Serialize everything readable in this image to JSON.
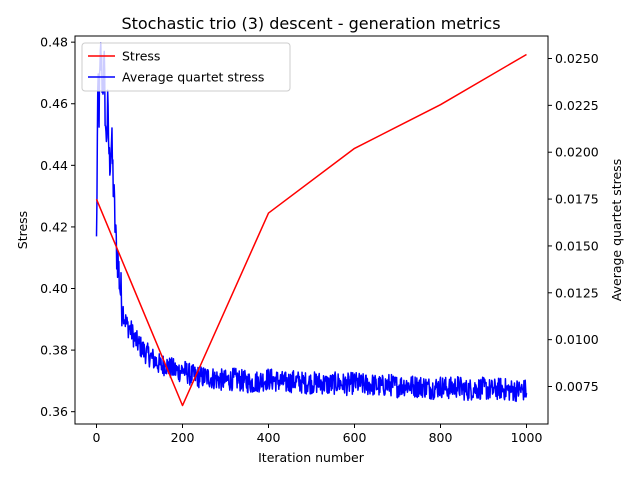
{
  "chart_data": {
    "type": "line",
    "title": "Stochastic trio (3) descent - generation metrics",
    "xlabel": "Iteration number",
    "ylabel": "Stress",
    "y2label": "Average quartet stress",
    "xlim": [
      -50,
      1050
    ],
    "ylim": [
      0.356,
      0.482
    ],
    "y2lim": [
      0.0055,
      0.0262
    ],
    "x_ticks": [
      "0",
      "200",
      "400",
      "600",
      "800",
      "1000"
    ],
    "y_ticks": [
      "0.36",
      "0.38",
      "0.40",
      "0.42",
      "0.44",
      "0.46",
      "0.48"
    ],
    "y2_ticks": [
      "0.0075",
      "0.0100",
      "0.0125",
      "0.0150",
      "0.0175",
      "0.0200",
      "0.0225",
      "0.0250"
    ],
    "grid": false,
    "legend_position": "upper-left",
    "series": [
      {
        "name": "Stress",
        "axis": "left",
        "color": "#ff0000",
        "x": [
          0,
          200,
          400,
          600,
          800,
          1000
        ],
        "values": [
          0.429,
          0.362,
          0.4245,
          0.4455,
          0.4597,
          0.476
        ]
      },
      {
        "name": "Average quartet stress",
        "axis": "right",
        "color": "#0000ff",
        "x": [
          0,
          2,
          4,
          6,
          8,
          10,
          14,
          18,
          22,
          26,
          30,
          35,
          40,
          45,
          50,
          55,
          60,
          65,
          70,
          80,
          90,
          100,
          110,
          120,
          130,
          140,
          150,
          160,
          170,
          180,
          190,
          200,
          220,
          240,
          260,
          280,
          300,
          320,
          340,
          360,
          380,
          400,
          420,
          440,
          460,
          480,
          500,
          520,
          540,
          560,
          580,
          600,
          620,
          640,
          660,
          680,
          700,
          720,
          740,
          760,
          780,
          800,
          820,
          840,
          860,
          880,
          900,
          920,
          940,
          960,
          980,
          1000
        ],
        "values": [
          0.0151,
          0.0205,
          0.0237,
          0.0222,
          0.024,
          0.0252,
          0.0236,
          0.0244,
          0.0205,
          0.0222,
          0.0194,
          0.0206,
          0.0178,
          0.0152,
          0.0142,
          0.0128,
          0.0118,
          0.0112,
          0.0108,
          0.0105,
          0.01,
          0.0097,
          0.0094,
          0.0092,
          0.009,
          0.0088,
          0.0086,
          0.0087,
          0.0085,
          0.0084,
          0.0083,
          0.0084,
          0.0081,
          0.008,
          0.008,
          0.0079,
          0.0078,
          0.0079,
          0.0078,
          0.0077,
          0.0078,
          0.0079,
          0.0078,
          0.0077,
          0.0078,
          0.0077,
          0.0077,
          0.0077,
          0.0076,
          0.0077,
          0.0076,
          0.0077,
          0.0076,
          0.0076,
          0.0075,
          0.0076,
          0.0075,
          0.0076,
          0.0075,
          0.0075,
          0.0074,
          0.0075,
          0.0074,
          0.0075,
          0.0073,
          0.0074,
          0.0074,
          0.0073,
          0.0074,
          0.0073,
          0.0073,
          0.0073
        ],
        "noise_amplitude": 0.0006
      }
    ]
  }
}
